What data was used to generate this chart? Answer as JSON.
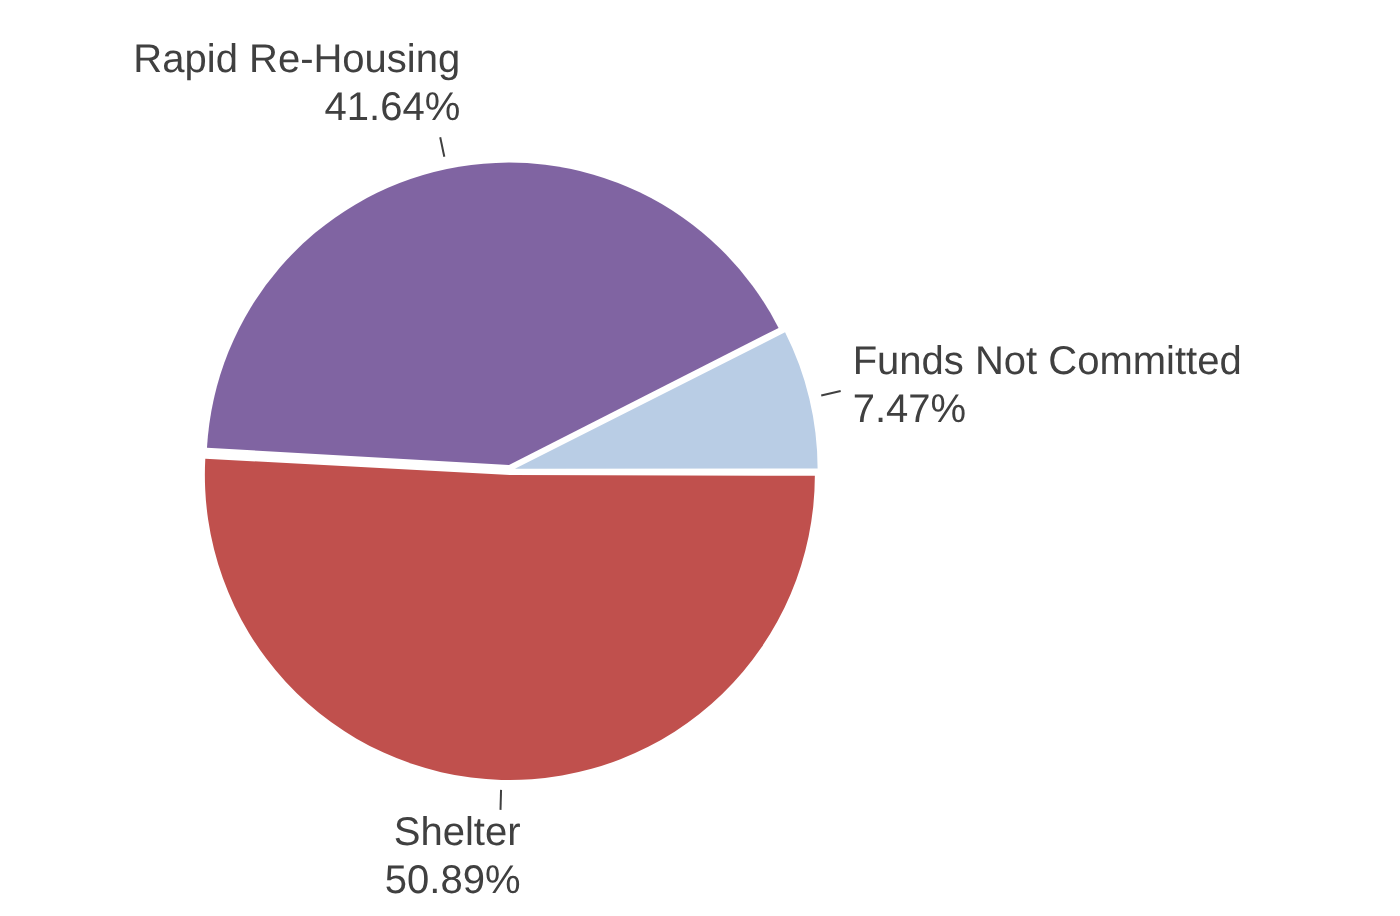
{
  "chart_data": {
    "type": "pie",
    "categories": [
      "Shelter",
      "Rapid Re-Housing",
      "Funds Not Committed"
    ],
    "values": [
      50.89,
      41.64,
      7.47
    ],
    "colors": [
      "#c0504d",
      "#8064a2",
      "#b9cde5"
    ],
    "value_labels": [
      "50.89%",
      "41.64%",
      "7.47%"
    ],
    "legend": false
  }
}
